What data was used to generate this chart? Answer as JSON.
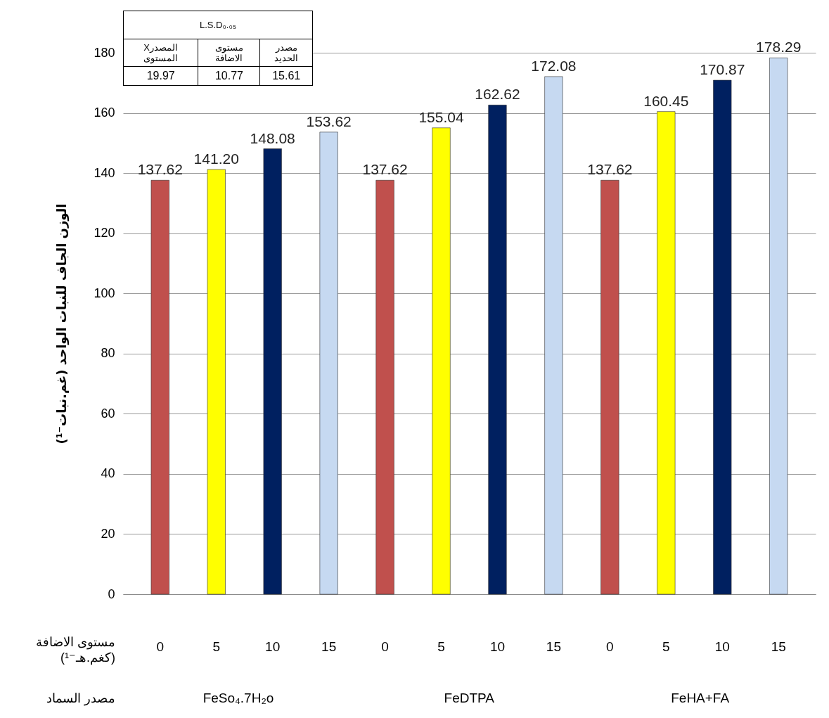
{
  "chart_data": {
    "type": "bar",
    "categories": [
      "0",
      "5",
      "10",
      "15",
      "0",
      "5",
      "10",
      "15",
      "0",
      "5",
      "10",
      "15"
    ],
    "values": [
      137.62,
      141.2,
      148.08,
      153.62,
      137.62,
      155.04,
      162.62,
      172.08,
      137.62,
      160.45,
      170.87,
      178.29
    ],
    "value_labels": [
      "137.62",
      "141.20",
      "148.08",
      "153.62",
      "137.62",
      "155.04",
      "162.62",
      "172.08",
      "137.62",
      "160.45",
      "170.87",
      "178.29"
    ],
    "colors": [
      "#c0504d",
      "#ffff00",
      "#002060",
      "#c6d9f1",
      "#c0504d",
      "#ffff00",
      "#002060",
      "#c6d9f1",
      "#c0504d",
      "#ffff00",
      "#002060",
      "#c6d9f1"
    ],
    "ylabel": "الوزن الجاف للنبات الواحد (غم.نبات⁻¹)",
    "xlabel": "مستوى الاضافة (كغم.هـ⁻¹)",
    "ylim": [
      0,
      180
    ],
    "yticks": [
      0,
      20,
      40,
      60,
      80,
      100,
      120,
      140,
      160,
      180
    ],
    "grid": "y",
    "legend": false,
    "annotations": [
      "L.S.D₀.₀₅",
      "مصدر الحديد",
      "مستوى الاضافة",
      "المصدرX المستوى",
      "15.61",
      "10.77",
      "19.97",
      "مصدر السماد",
      "FeSo₄.7H₂o",
      "FeDTPA",
      "FeHA+FA"
    ]
  }
}
